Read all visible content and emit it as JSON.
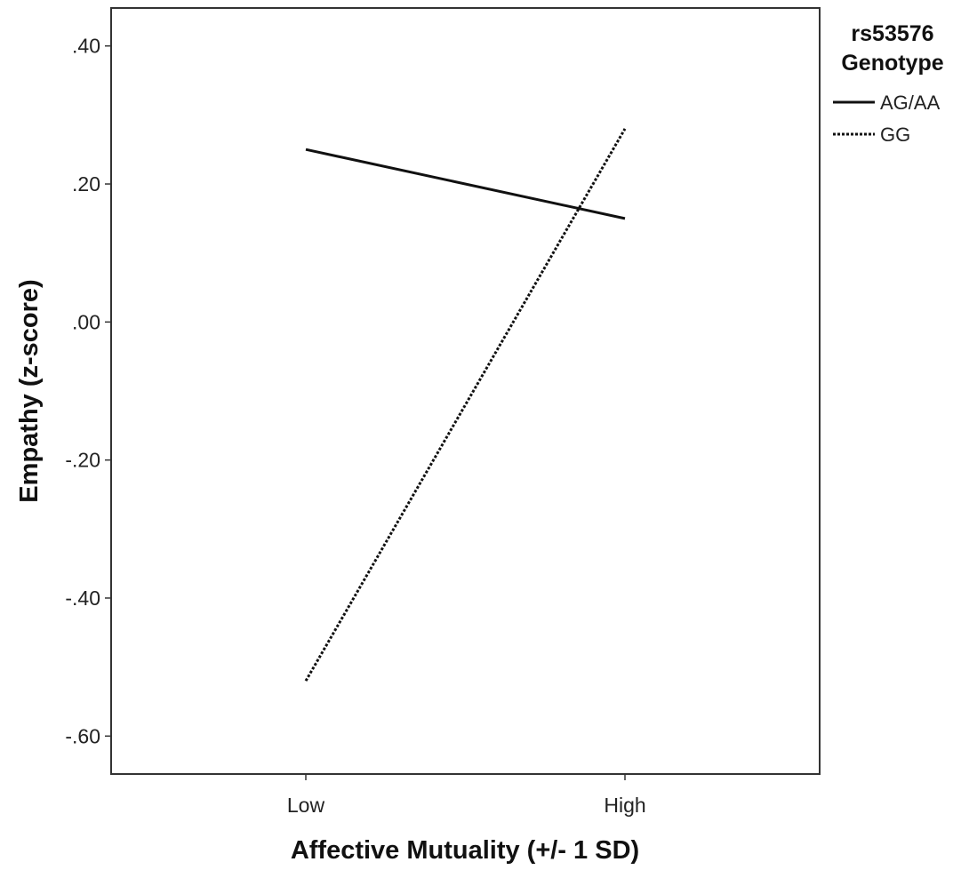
{
  "chart_data": {
    "type": "line",
    "xlabel": "Affective Mutuality (+/- 1 SD)",
    "ylabel": "Empathy (z-score)",
    "categories": [
      "Low",
      "High"
    ],
    "ylim": [
      -0.655,
      0.455
    ],
    "yticks": [
      0.4,
      0.2,
      0.0,
      -0.2,
      -0.4,
      -0.6
    ],
    "ytick_labels": [
      ".40",
      ".20",
      ".00",
      "-.20",
      "-.40",
      "-.60"
    ],
    "grid": false,
    "legend": {
      "title_lines": [
        "rs53576",
        "Genotype"
      ],
      "position": "right-top"
    },
    "series": [
      {
        "name": "AG/AA",
        "values": [
          0.25,
          0.15
        ],
        "style": "solid",
        "color": "#111111"
      },
      {
        "name": "GG",
        "values": [
          -0.52,
          0.28
        ],
        "style": "dotted",
        "color": "#111111"
      }
    ]
  }
}
